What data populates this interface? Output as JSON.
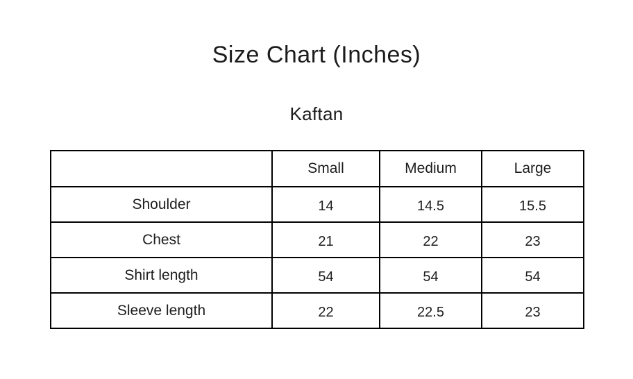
{
  "page": {
    "title": "Size Chart (Inches)",
    "subtitle": "Kaftan"
  },
  "colors": {
    "background": "#ffffff",
    "text": "#1d1d1d",
    "table_border": "#000000"
  },
  "table": {
    "columns": [
      "",
      "Small",
      "Medium",
      "Large"
    ],
    "rows": [
      {
        "label": "Shoulder",
        "values": [
          "14",
          "14.5",
          "15.5"
        ]
      },
      {
        "label": "Chest",
        "values": [
          "21",
          "22",
          "23"
        ]
      },
      {
        "label": "Shirt length",
        "values": [
          "54",
          "54",
          "54"
        ]
      },
      {
        "label": "Sleeve length",
        "values": [
          "22",
          "22.5",
          "23"
        ]
      }
    ]
  },
  "chart_data": {
    "type": "table",
    "title": "Size Chart (Inches)",
    "subtitle": "Kaftan",
    "categories": [
      "Small",
      "Medium",
      "Large"
    ],
    "series": [
      {
        "name": "Shoulder",
        "values": [
          14,
          14.5,
          15.5
        ]
      },
      {
        "name": "Chest",
        "values": [
          21,
          22,
          23
        ]
      },
      {
        "name": "Shirt length",
        "values": [
          54,
          54,
          54
        ]
      },
      {
        "name": "Sleeve length",
        "values": [
          22,
          22.5,
          23
        ]
      }
    ],
    "layout": {
      "grid": "full-borders",
      "legend": "none"
    }
  }
}
